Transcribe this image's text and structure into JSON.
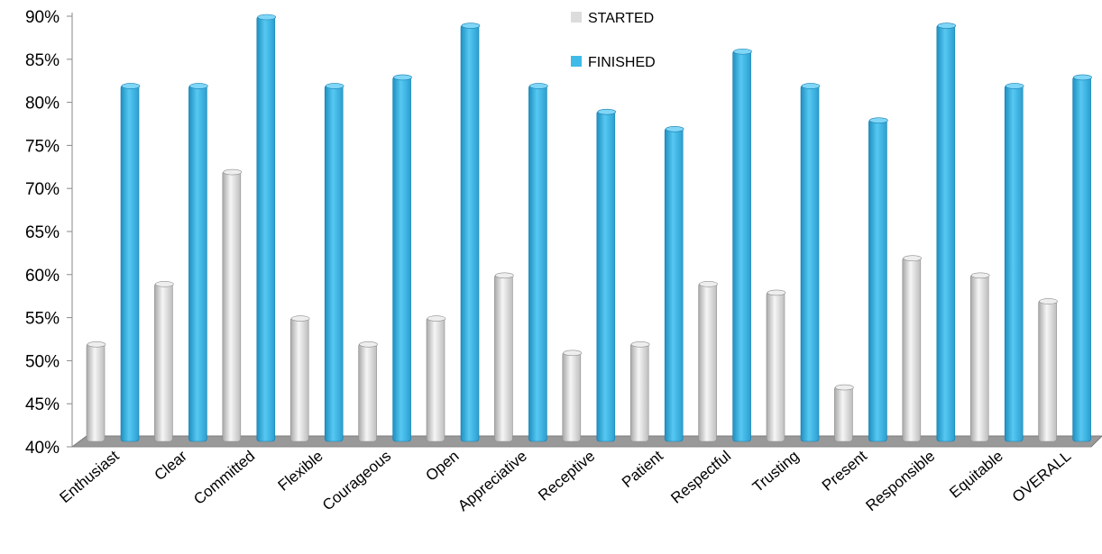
{
  "chart_data": {
    "type": "bar",
    "title": "",
    "xlabel": "",
    "ylabel": "",
    "categories": [
      "Enthusiast",
      "Clear",
      "Committed",
      "Flexible",
      "Courageous",
      "Open",
      "Appreciative",
      "Receptive",
      "Patient",
      "Respectful",
      "Trusting",
      "Present",
      "Responsible",
      "Equitable",
      "OVERALL"
    ],
    "series": [
      {
        "name": "STARTED",
        "color": "#dcdcdc",
        "values": [
          52,
          59,
          72,
          55,
          52,
          55,
          60,
          51,
          52,
          59,
          58,
          47,
          62,
          60,
          57
        ]
      },
      {
        "name": "FINISHED",
        "color": "#3fbbe8",
        "values": [
          82,
          82,
          90,
          82,
          83,
          89,
          82,
          79,
          77,
          86,
          82,
          78,
          89,
          82,
          83
        ]
      }
    ],
    "ylim": [
      40,
      90
    ],
    "yticks": [
      "40%",
      "45%",
      "50%",
      "55%",
      "60%",
      "65%",
      "70%",
      "75%",
      "80%",
      "85%",
      "90%"
    ],
    "grid": false,
    "legend_position": "top-center",
    "floor_color": "#999999"
  }
}
